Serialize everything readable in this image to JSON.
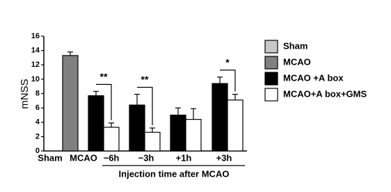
{
  "chart_data": {
    "type": "bar",
    "ylabel": "mNSS",
    "xlabel": "Injection time after MCAO",
    "categories": [
      "Sham",
      "MCAO",
      "−6h",
      "−3h",
      "+1h",
      "+3h"
    ],
    "series": [
      {
        "name": "Sham",
        "color": "#c8c8c8",
        "values": [
          0,
          null,
          null,
          null,
          null,
          null
        ],
        "errors": [
          null,
          null,
          null,
          null,
          null,
          null
        ]
      },
      {
        "name": "MCAO",
        "color": "#808080",
        "values": [
          null,
          13.3,
          null,
          null,
          null,
          null
        ],
        "errors": [
          null,
          0.5,
          null,
          null,
          null,
          null
        ]
      },
      {
        "name": "MCAO +A box",
        "color": "#000000",
        "values": [
          null,
          null,
          7.7,
          6.4,
          5.0,
          9.4
        ],
        "errors": [
          null,
          null,
          0.6,
          1.5,
          1.0,
          0.9
        ]
      },
      {
        "name": "MCAO+A box+GMS",
        "color": "#ffffff",
        "values": [
          null,
          null,
          3.3,
          2.6,
          4.4,
          7.1
        ],
        "errors": [
          null,
          null,
          0.6,
          0.6,
          1.5,
          0.8
        ]
      }
    ],
    "annotations": [
      {
        "category": 2,
        "text": "**"
      },
      {
        "category": 3,
        "text": "**"
      },
      {
        "category": 5,
        "text": "*"
      }
    ],
    "ylim": [
      0,
      16
    ],
    "yticks": [
      0,
      2,
      4,
      6,
      8,
      10,
      12,
      14,
      16
    ],
    "legend": "right"
  }
}
